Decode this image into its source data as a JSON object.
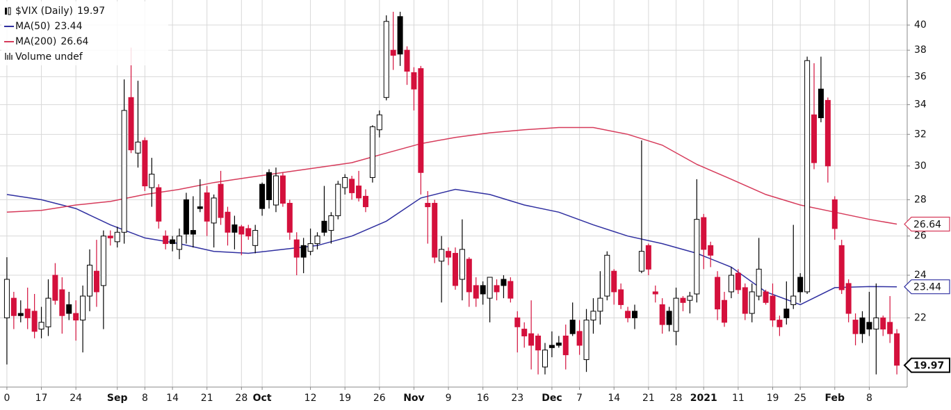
{
  "chart_data": {
    "type": "candlestick",
    "title": "$VIX (Daily)",
    "volume_legend": "Volume undef",
    "log_scale": true,
    "grid": true,
    "ylim": [
      19.1,
      42.1
    ],
    "yticks": [
      22,
      24,
      26,
      28,
      30,
      32,
      34,
      36,
      38,
      40
    ],
    "xlim": [
      -1,
      130.5
    ],
    "xticks": [
      {
        "value": 0,
        "label": "0"
      },
      {
        "value": 5,
        "label": "17"
      },
      {
        "value": 10,
        "label": "24"
      },
      {
        "value": 16,
        "label": "Sep"
      },
      {
        "value": 20,
        "label": "8"
      },
      {
        "value": 24,
        "label": "14"
      },
      {
        "value": 29,
        "label": "21"
      },
      {
        "value": 34,
        "label": "28"
      },
      {
        "value": 37,
        "label": "Oct"
      },
      {
        "value": 44,
        "label": "12"
      },
      {
        "value": 49,
        "label": "19"
      },
      {
        "value": 54,
        "label": "26"
      },
      {
        "value": 59,
        "label": "Nov"
      },
      {
        "value": 64,
        "label": "9"
      },
      {
        "value": 69,
        "label": "16"
      },
      {
        "value": 74,
        "label": "23"
      },
      {
        "value": 79,
        "label": "Dec"
      },
      {
        "value": 83,
        "label": "7"
      },
      {
        "value": 88,
        "label": "14"
      },
      {
        "value": 93,
        "label": "21"
      },
      {
        "value": 97,
        "label": "28"
      },
      {
        "value": 101,
        "label": "2021"
      },
      {
        "value": 106,
        "label": "11"
      },
      {
        "value": 111,
        "label": "19"
      },
      {
        "value": 115,
        "label": "25"
      },
      {
        "value": 120,
        "label": "Feb"
      },
      {
        "value": 125,
        "label": "8"
      }
    ],
    "colors": {
      "rising": "#000000",
      "falling": "#d4103c",
      "hollow": "#ffffff"
    },
    "open": [
      22.0,
      22.9,
      22.2,
      22.4,
      22.3,
      21.5,
      21.6,
      24.0,
      23.3,
      22.6,
      22.2,
      21.9,
      23.0,
      24.2,
      23.5,
      26.0,
      25.7,
      26.2,
      34.5,
      30.8,
      31.6,
      28.7,
      28.7,
      26.0,
      25.8,
      25.3,
      28.0,
      26.3,
      27.6,
      28.4,
      26.7,
      28.9,
      27.3,
      26.6,
      26.5,
      26.4,
      25.5,
      28.9,
      29.6,
      27.7,
      29.4,
      27.8,
      25.8,
      25.5,
      25.2,
      25.6,
      26.8,
      26.3,
      27.1,
      28.7,
      29.2,
      28.8,
      28.2,
      29.3,
      32.3,
      34.5,
      38.0,
      40.7,
      38.0,
      36.3,
      36.6,
      27.8,
      27.8,
      24.7,
      25.2,
      25.1,
      23.8,
      24.8,
      23.5,
      23.5,
      22.9,
      23.5,
      23.8,
      23.7,
      22.0,
      21.5,
      21.3,
      21.2,
      19.9,
      20.8,
      20.9,
      21.2,
      21.9,
      21.4,
      20.2,
      21.9,
      22.3,
      23.0,
      24.2,
      23.3,
      22.3,
      22.3,
      24.2,
      25.5,
      23.2,
      22.6,
      22.3,
      21.4,
      22.9,
      22.8,
      23.1,
      27.0,
      25.5,
      23.9,
      22.8,
      23.2,
      24.1,
      23.4,
      22.2,
      23.0,
      23.2,
      23.0,
      21.9,
      22.4,
      22.6,
      23.9,
      23.2,
      33.3,
      35.1,
      34.3,
      28.0,
      25.5,
      23.6,
      21.9,
      22.0,
      21.8,
      21.5,
      22.0,
      21.8,
      21.3
    ],
    "high": [
      24.9,
      23.2,
      22.8,
      23.4,
      23.1,
      22.5,
      23.8,
      24.6,
      23.9,
      23.2,
      22.8,
      23.5,
      25.3,
      25.8,
      26.3,
      26.3,
      26.5,
      35.8,
      38.2,
      35.7,
      31.8,
      30.5,
      28.9,
      26.3,
      26.0,
      26.4,
      28.4,
      28.2,
      29.2,
      28.8,
      28.3,
      29.7,
      27.6,
      27.1,
      26.6,
      26.6,
      26.6,
      29.0,
      29.8,
      29.9,
      29.6,
      28.0,
      26.2,
      25.9,
      26.4,
      26.2,
      28.8,
      27.3,
      29.1,
      29.5,
      29.4,
      29.7,
      28.6,
      32.6,
      33.6,
      40.8,
      41.1,
      41.1,
      38.3,
      36.7,
      36.8,
      28.5,
      28.0,
      26.0,
      25.4,
      25.4,
      26.9,
      24.9,
      23.9,
      23.7,
      23.9,
      23.8,
      24.0,
      23.9,
      22.3,
      21.8,
      22.8,
      21.3,
      20.9,
      21.4,
      21.2,
      21.7,
      22.7,
      21.9,
      22.4,
      22.9,
      24.2,
      25.2,
      24.3,
      23.6,
      22.5,
      22.6,
      31.6,
      25.6,
      23.5,
      22.9,
      22.5,
      23.4,
      23.0,
      23.2,
      29.2,
      27.2,
      25.7,
      24.2,
      23.2,
      24.4,
      24.3,
      23.6,
      23.6,
      25.9,
      23.3,
      23.6,
      22.1,
      23.7,
      26.6,
      24.1,
      37.5,
      37.0,
      37.5,
      34.5,
      28.2,
      25.8,
      23.8,
      22.2,
      22.3,
      23.2,
      23.6,
      22.1,
      23.0,
      21.5
    ],
    "low": [
      20.0,
      21.5,
      21.8,
      21.5,
      21.1,
      21.1,
      21.2,
      22.6,
      21.3,
      21.9,
      21.0,
      20.5,
      22.3,
      22.5,
      21.5,
      25.5,
      25.4,
      25.6,
      30.8,
      29.9,
      28.5,
      27.6,
      26.4,
      25.3,
      25.2,
      24.8,
      25.6,
      25.4,
      27.3,
      26.0,
      25.4,
      26.6,
      25.5,
      25.3,
      25.0,
      25.8,
      25.1,
      27.1,
      27.5,
      27.3,
      27.6,
      25.8,
      24.0,
      24.1,
      25.0,
      25.3,
      26.0,
      25.6,
      26.9,
      28.3,
      28.0,
      27.9,
      27.3,
      29.0,
      31.8,
      34.3,
      36.5,
      36.8,
      35.4,
      33.6,
      28.3,
      25.6,
      24.6,
      22.7,
      24.5,
      23.3,
      22.8,
      22.5,
      22.5,
      22.6,
      21.8,
      22.8,
      22.9,
      22.7,
      20.5,
      20.7,
      19.8,
      19.6,
      19.6,
      20.3,
      20.7,
      19.8,
      21.2,
      20.4,
      19.7,
      21.3,
      21.7,
      22.8,
      22.6,
      22.4,
      21.8,
      21.5,
      24.1,
      24.0,
      22.7,
      21.3,
      21.4,
      20.8,
      22.3,
      22.2,
      22.7,
      24.3,
      24.4,
      21.9,
      21.6,
      22.9,
      23.1,
      21.9,
      21.8,
      22.8,
      22.6,
      21.6,
      21.2,
      21.7,
      22.4,
      22.7,
      23.1,
      29.8,
      32.8,
      29.0,
      25.8,
      23.1,
      21.8,
      20.8,
      20.9,
      21.2,
      19.6,
      21.2,
      20.9,
      19.6
    ],
    "close": [
      23.8,
      22.1,
      22.1,
      22.0,
      21.4,
      21.8,
      22.9,
      22.8,
      22.1,
      22.2,
      21.9,
      23.0,
      24.5,
      23.2,
      26.0,
      25.9,
      26.2,
      33.6,
      31.0,
      31.5,
      28.8,
      29.5,
      26.8,
      25.6,
      25.6,
      26.0,
      26.1,
      26.1,
      27.5,
      26.8,
      28.1,
      27.0,
      26.2,
      26.2,
      26.1,
      26.0,
      26.3,
      27.5,
      28.0,
      29.4,
      27.8,
      26.2,
      24.9,
      24.9,
      25.6,
      26.0,
      26.2,
      27.1,
      28.9,
      29.3,
      28.4,
      28.1,
      27.6,
      32.5,
      33.3,
      40.3,
      37.6,
      37.7,
      36.4,
      35.1,
      29.6,
      27.6,
      24.9,
      25.3,
      24.9,
      23.5,
      25.3,
      23.2,
      22.9,
      23.1,
      23.9,
      23.2,
      23.5,
      22.9,
      21.6,
      21.2,
      20.8,
      20.6,
      20.6,
      20.7,
      20.8,
      20.4,
      21.3,
      20.8,
      21.9,
      22.3,
      22.9,
      25.0,
      23.2,
      22.6,
      22.0,
      22.0,
      25.2,
      24.3,
      23.1,
      21.7,
      21.7,
      22.9,
      22.7,
      23.0,
      26.9,
      25.3,
      25.0,
      22.4,
      21.8,
      24.0,
      23.3,
      22.2,
      23.2,
      24.3,
      22.7,
      21.9,
      21.6,
      22.0,
      23.0,
      23.2,
      37.2,
      30.2,
      33.1,
      30.0,
      26.4,
      23.3,
      22.2,
      21.3,
      21.3,
      21.5,
      22.0,
      21.5,
      21.3,
      19.97
    ],
    "series": [
      {
        "name": "MA(50)",
        "color": "#2f2fa0",
        "x": [
          0,
          5,
          10,
          15,
          20,
          25,
          30,
          35,
          40,
          45,
          50,
          55,
          60,
          65,
          70,
          75,
          80,
          85,
          90,
          95,
          100,
          105,
          110,
          115,
          120,
          125,
          129
        ],
        "values": [
          28.3,
          28.0,
          27.5,
          26.6,
          25.9,
          25.6,
          25.2,
          25.1,
          25.3,
          25.5,
          26.0,
          26.8,
          28.1,
          28.6,
          28.3,
          27.7,
          27.3,
          26.6,
          26.0,
          25.6,
          25.1,
          24.4,
          23.2,
          22.6,
          23.4,
          23.45,
          23.44
        ]
      },
      {
        "name": "MA(200)",
        "color": "#d63a5a",
        "x": [
          0,
          5,
          10,
          15,
          20,
          25,
          30,
          35,
          40,
          45,
          50,
          55,
          60,
          65,
          70,
          75,
          80,
          85,
          90,
          95,
          100,
          105,
          110,
          115,
          120,
          125,
          129
        ],
        "values": [
          27.3,
          27.4,
          27.7,
          27.9,
          28.3,
          28.6,
          29.0,
          29.3,
          29.6,
          29.9,
          30.2,
          30.8,
          31.4,
          31.8,
          32.1,
          32.3,
          32.45,
          32.45,
          32.0,
          31.3,
          30.1,
          29.2,
          28.3,
          27.7,
          27.3,
          26.9,
          26.64
        ]
      }
    ]
  }
}
